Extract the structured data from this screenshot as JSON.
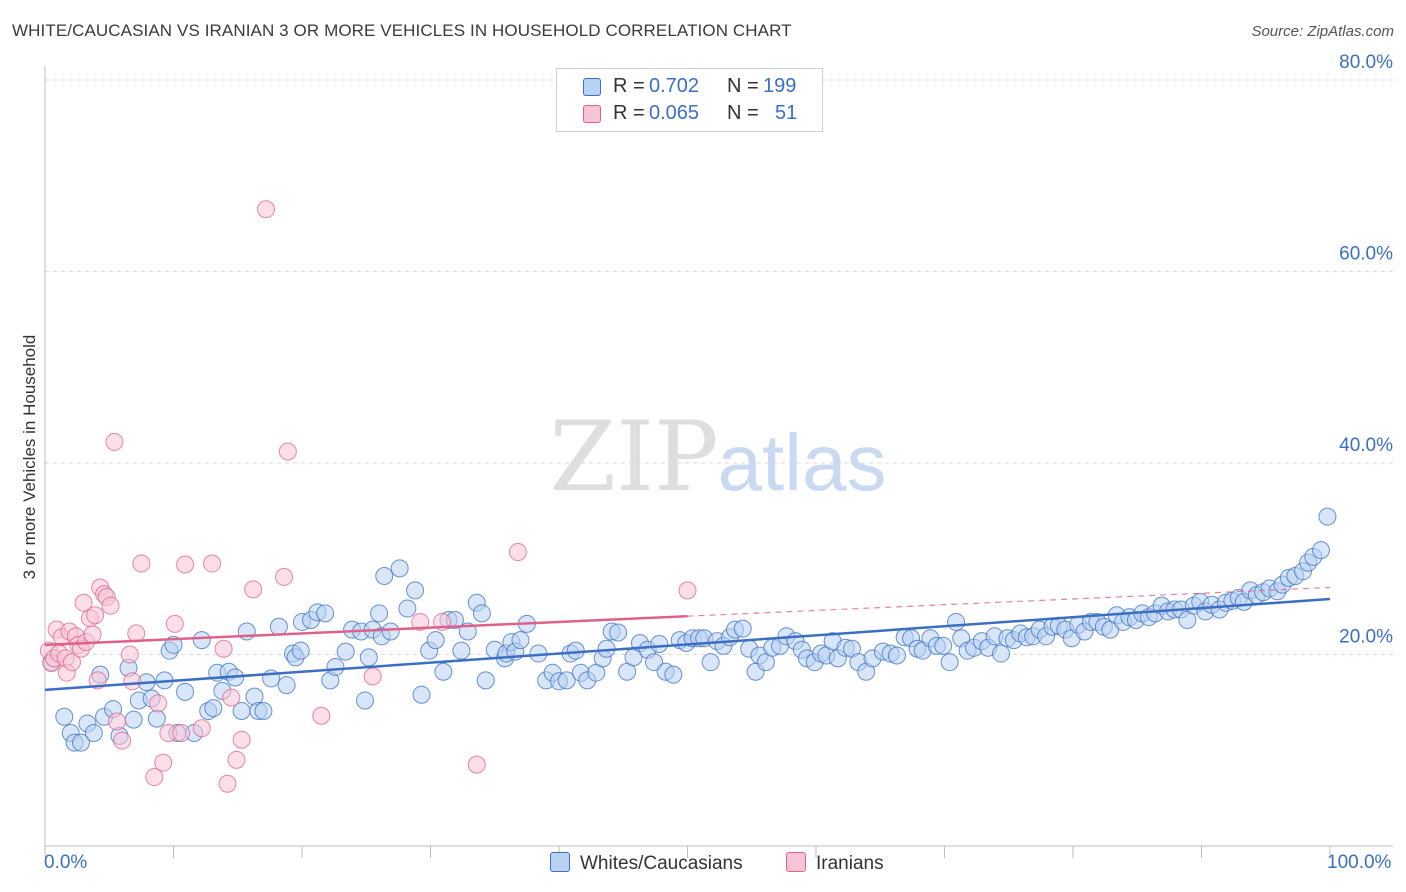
{
  "title": "WHITE/CAUCASIAN VS IRANIAN 3 OR MORE VEHICLES IN HOUSEHOLD CORRELATION CHART",
  "source": "Source: ZipAtlas.com",
  "watermark": {
    "zip": "ZIP",
    "atlas": "atlas"
  },
  "colors": {
    "blue": "#3a6fc4",
    "blue_fill": "#b9d2f3",
    "pink": "#e0608c",
    "pink_fill": "#f7c4d5",
    "grid": "#d9d9d9",
    "axis_label": "#3a6fc4"
  },
  "legend": {
    "rows": [
      {
        "r_label": "R =",
        "r_value": "0.702",
        "n_label": "N =",
        "n_value": "199"
      },
      {
        "r_label": "R =",
        "r_value": "0.065",
        "n_label": "N =",
        "n_value": "51"
      }
    ]
  },
  "bottom_legend": [
    "Whites/Caucasians",
    "Iranians"
  ],
  "chart_data": {
    "type": "scatter",
    "title": "WHITE/CAUCASIAN VS IRANIAN 3 OR MORE VEHICLES IN HOUSEHOLD CORRELATION CHART",
    "xlabel": "",
    "ylabel": "3 or more Vehicles in Household",
    "xlim": [
      0,
      100
    ],
    "ylim": [
      0,
      80
    ],
    "x_tick_labels": [
      "0.0%",
      "100.0%"
    ],
    "y_ticks": [
      20,
      40,
      60,
      80
    ],
    "y_tick_labels": [
      "20.0%",
      "40.0%",
      "60.0%",
      "80.0%"
    ],
    "grid": true,
    "legend_placement": "top-center",
    "series": [
      {
        "name": "Whites/Caucasians",
        "color": "#3a6fc4",
        "trend": {
          "x": [
            0,
            100
          ],
          "y": [
            16.3,
            25.8
          ]
        },
        "points": [
          [
            0.5,
            19.2
          ],
          [
            1.5,
            13.5
          ],
          [
            2,
            11.8
          ],
          [
            2.3,
            10.8
          ],
          [
            2.8,
            10.8
          ],
          [
            3.3,
            12.8
          ],
          [
            3.8,
            11.8
          ],
          [
            4.3,
            17.9
          ],
          [
            4.6,
            13.5
          ],
          [
            5.3,
            14.3
          ],
          [
            5.8,
            11.5
          ],
          [
            6.5,
            18.6
          ],
          [
            6.9,
            13.2
          ],
          [
            7.3,
            15.2
          ],
          [
            7.9,
            17.1
          ],
          [
            8.3,
            15.4
          ],
          [
            8.7,
            13.3
          ],
          [
            9.3,
            17.3
          ],
          [
            9.7,
            20.4
          ],
          [
            10,
            21
          ],
          [
            10.3,
            11.8
          ],
          [
            10.9,
            16.1
          ],
          [
            11.6,
            11.8
          ],
          [
            12.2,
            21.5
          ],
          [
            12.7,
            14.1
          ],
          [
            13.1,
            14.4
          ],
          [
            13.4,
            18.1
          ],
          [
            13.8,
            16.2
          ],
          [
            14.3,
            18.2
          ],
          [
            14.8,
            17.6
          ],
          [
            15.3,
            14.1
          ],
          [
            15.7,
            22.4
          ],
          [
            16.3,
            15.6
          ],
          [
            16.6,
            14.1
          ],
          [
            17,
            14.1
          ],
          [
            17.6,
            17.5
          ],
          [
            18.2,
            22.9
          ],
          [
            18.8,
            16.8
          ],
          [
            19.3,
            20.1
          ],
          [
            19.5,
            19.7
          ],
          [
            19.9,
            20.4
          ],
          [
            20,
            23.4
          ],
          [
            20.7,
            23.6
          ],
          [
            21.2,
            24.4
          ],
          [
            21.8,
            24.3
          ],
          [
            22.2,
            17.3
          ],
          [
            22.6,
            18.7
          ],
          [
            23.4,
            20.3
          ],
          [
            23.9,
            22.6
          ],
          [
            24.6,
            22.4
          ],
          [
            24.9,
            15.2
          ],
          [
            25.2,
            19.7
          ],
          [
            25.5,
            22.6
          ],
          [
            26,
            24.3
          ],
          [
            26.2,
            21.9
          ],
          [
            26.4,
            28.2
          ],
          [
            26.9,
            22.4
          ],
          [
            27.6,
            29
          ],
          [
            28.2,
            24.8
          ],
          [
            28.8,
            26.7
          ],
          [
            29.3,
            15.8
          ],
          [
            29.9,
            20.4
          ],
          [
            30.4,
            21.5
          ],
          [
            31,
            18.2
          ],
          [
            31.4,
            23.6
          ],
          [
            31.9,
            23.6
          ],
          [
            32.4,
            20.4
          ],
          [
            32.9,
            22.4
          ],
          [
            33.6,
            25.4
          ],
          [
            34,
            24.3
          ],
          [
            34.3,
            17.3
          ],
          [
            35,
            20.5
          ],
          [
            35.8,
            19.6
          ],
          [
            35.9,
            20.1
          ],
          [
            36.3,
            21.3
          ],
          [
            36.6,
            20.3
          ],
          [
            37,
            21.5
          ],
          [
            37.5,
            23.2
          ],
          [
            38.4,
            20.1
          ],
          [
            39,
            17.3
          ],
          [
            39.5,
            18.1
          ],
          [
            40,
            17.2
          ],
          [
            40.6,
            17.3
          ],
          [
            40.9,
            20.1
          ],
          [
            41.3,
            20.4
          ],
          [
            41.7,
            18.1
          ],
          [
            42.2,
            17.3
          ],
          [
            42.9,
            18.1
          ],
          [
            43.4,
            19.6
          ],
          [
            43.7,
            20.6
          ],
          [
            44.1,
            22.4
          ],
          [
            44.6,
            22.3
          ],
          [
            45.3,
            18.2
          ],
          [
            45.8,
            19.7
          ],
          [
            46.3,
            21.2
          ],
          [
            46.9,
            20.5
          ],
          [
            47.4,
            19.2
          ],
          [
            47.8,
            21.1
          ],
          [
            48.3,
            18.2
          ],
          [
            48.9,
            17.9
          ],
          [
            49.4,
            21.5
          ],
          [
            49.9,
            21.2
          ],
          [
            50.4,
            21.7
          ],
          [
            50.9,
            21.7
          ],
          [
            51.3,
            21.7
          ],
          [
            51.8,
            19.2
          ],
          [
            52.3,
            21.4
          ],
          [
            52.8,
            20.9
          ],
          [
            53.3,
            21.8
          ],
          [
            53.7,
            22.6
          ],
          [
            54.3,
            22.7
          ],
          [
            54.8,
            20.6
          ],
          [
            55.3,
            18.2
          ],
          [
            55.6,
            19.9
          ],
          [
            56.1,
            19.2
          ],
          [
            56.6,
            20.7
          ],
          [
            57.2,
            20.9
          ],
          [
            57.7,
            21.9
          ],
          [
            58.4,
            21.4
          ],
          [
            58.9,
            20.5
          ],
          [
            59.3,
            19.6
          ],
          [
            59.9,
            19.2
          ],
          [
            60.4,
            20.1
          ],
          [
            60.8,
            19.9
          ],
          [
            61.3,
            21.4
          ],
          [
            61.7,
            19.6
          ],
          [
            62.3,
            20.7
          ],
          [
            62.8,
            20.6
          ],
          [
            63.3,
            19.2
          ],
          [
            63.9,
            18.2
          ],
          [
            64.4,
            19.6
          ],
          [
            65.2,
            20.3
          ],
          [
            65.8,
            20.1
          ],
          [
            66.3,
            19.9
          ],
          [
            66.9,
            21.8
          ],
          [
            67.4,
            21.7
          ],
          [
            67.9,
            20.6
          ],
          [
            68.3,
            20.4
          ],
          [
            68.9,
            21.7
          ],
          [
            69.4,
            20.9
          ],
          [
            69.9,
            20.9
          ],
          [
            70.4,
            19.2
          ],
          [
            70.9,
            23.4
          ],
          [
            71.3,
            21.7
          ],
          [
            71.8,
            20.4
          ],
          [
            72.3,
            20.7
          ],
          [
            72.9,
            21.4
          ],
          [
            73.4,
            20.7
          ],
          [
            73.9,
            21.9
          ],
          [
            74.4,
            20.1
          ],
          [
            74.9,
            21.7
          ],
          [
            75.4,
            21.5
          ],
          [
            75.9,
            22.2
          ],
          [
            76.4,
            21.8
          ],
          [
            76.9,
            21.9
          ],
          [
            77.4,
            22.6
          ],
          [
            77.9,
            21.9
          ],
          [
            78.4,
            22.9
          ],
          [
            78.9,
            23
          ],
          [
            79.4,
            22.6
          ],
          [
            79.9,
            21.7
          ],
          [
            80.4,
            23.1
          ],
          [
            80.9,
            22.4
          ],
          [
            81.4,
            23.4
          ],
          [
            81.9,
            23.4
          ],
          [
            82.4,
            22.9
          ],
          [
            82.9,
            22.6
          ],
          [
            83.4,
            24.1
          ],
          [
            83.9,
            23.4
          ],
          [
            84.4,
            23.9
          ],
          [
            84.9,
            23.6
          ],
          [
            85.4,
            24.3
          ],
          [
            85.9,
            23.9
          ],
          [
            86.4,
            24.3
          ],
          [
            86.9,
            25.1
          ],
          [
            87.4,
            24.5
          ],
          [
            87.9,
            24.7
          ],
          [
            88.4,
            24.7
          ],
          [
            88.9,
            23.6
          ],
          [
            89.4,
            25.1
          ],
          [
            89.9,
            25.5
          ],
          [
            90.3,
            24.5
          ],
          [
            90.8,
            25.2
          ],
          [
            91.4,
            24.7
          ],
          [
            91.9,
            25.4
          ],
          [
            92.4,
            25.6
          ],
          [
            92.9,
            25.9
          ],
          [
            93.3,
            25.5
          ],
          [
            93.8,
            26.7
          ],
          [
            94.3,
            26.2
          ],
          [
            94.8,
            26.5
          ],
          [
            95.3,
            26.9
          ],
          [
            95.9,
            26.6
          ],
          [
            96.3,
            27.3
          ],
          [
            96.8,
            28
          ],
          [
            97.3,
            28.2
          ],
          [
            97.9,
            28.7
          ],
          [
            98.3,
            29.6
          ],
          [
            98.7,
            30.2
          ],
          [
            99.3,
            30.9
          ],
          [
            99.8,
            34.4
          ]
        ]
      },
      {
        "name": "Iranians",
        "color": "#e0608c",
        "trend": {
          "x": [
            0,
            50
          ],
          "y": [
            21,
            24
          ]
        },
        "trend_dashed": {
          "x": [
            50,
            100
          ],
          "y": [
            24,
            27
          ]
        },
        "points": [
          [
            0.3,
            20.4
          ],
          [
            0.5,
            19.1
          ],
          [
            0.7,
            19.6
          ],
          [
            0.9,
            22.6
          ],
          [
            1.1,
            20.1
          ],
          [
            1.3,
            21.8
          ],
          [
            1.6,
            19.6
          ],
          [
            1.7,
            18.1
          ],
          [
            1.9,
            22.4
          ],
          [
            2.1,
            19.2
          ],
          [
            2.4,
            21.9
          ],
          [
            2.6,
            21
          ],
          [
            2.8,
            20.6
          ],
          [
            3,
            25.4
          ],
          [
            3.2,
            21.3
          ],
          [
            3.5,
            23.8
          ],
          [
            3.7,
            22.1
          ],
          [
            3.9,
            24.1
          ],
          [
            4.1,
            17.3
          ],
          [
            4.3,
            27
          ],
          [
            4.6,
            26.3
          ],
          [
            4.8,
            26
          ],
          [
            5.1,
            25.1
          ],
          [
            5.4,
            42.2
          ],
          [
            5.6,
            13
          ],
          [
            6,
            11
          ],
          [
            6.6,
            20
          ],
          [
            6.8,
            17.2
          ],
          [
            7.1,
            22.2
          ],
          [
            7.5,
            29.5
          ],
          [
            8.5,
            7.2
          ],
          [
            8.8,
            14.9
          ],
          [
            9.2,
            8.7
          ],
          [
            9.6,
            11.8
          ],
          [
            10.1,
            23.2
          ],
          [
            10.6,
            11.8
          ],
          [
            10.9,
            29.4
          ],
          [
            12.2,
            12.3
          ],
          [
            13,
            29.5
          ],
          [
            13.9,
            20.6
          ],
          [
            14.2,
            6.5
          ],
          [
            14.5,
            15.5
          ],
          [
            14.9,
            9
          ],
          [
            15.3,
            11.1
          ],
          [
            16.2,
            26.8
          ],
          [
            17.2,
            66.5
          ],
          [
            18.6,
            28.1
          ],
          [
            18.9,
            41.2
          ],
          [
            21.5,
            13.6
          ],
          [
            25.5,
            17.7
          ],
          [
            29.2,
            23.4
          ],
          [
            30.9,
            23.4
          ],
          [
            33.6,
            8.5
          ],
          [
            36.8,
            30.7
          ],
          [
            50,
            26.7
          ]
        ]
      }
    ]
  }
}
